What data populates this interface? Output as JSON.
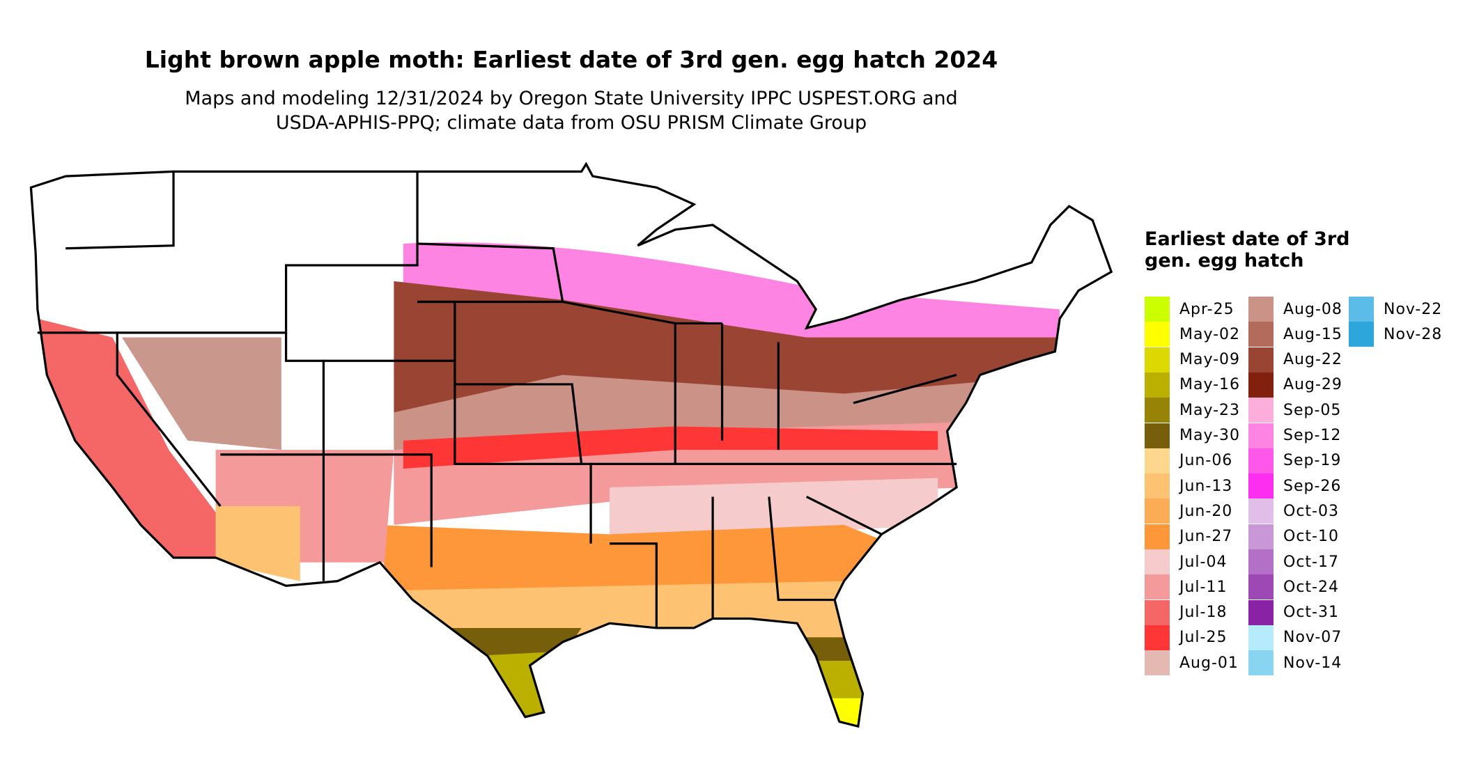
{
  "title": "Light brown apple moth: Earliest date of 3rd gen. egg hatch 2024",
  "subtitle_lines": [
    "Maps and modeling 12/31/2024 by Oregon State University IPPC USPEST.ORG and",
    "USDA-APHIS-PPQ; climate data from OSU PRISM Climate Group"
  ],
  "legend": {
    "title": "Earliest date of 3rd gen. egg hatch",
    "items": [
      {
        "label": "Apr-25",
        "color": "#CCFF00"
      },
      {
        "label": "May-02",
        "color": "#FFFF00"
      },
      {
        "label": "May-09",
        "color": "#DDD800"
      },
      {
        "label": "May-16",
        "color": "#BBAF00"
      },
      {
        "label": "May-23",
        "color": "#978406"
      },
      {
        "label": "May-30",
        "color": "#765E0B"
      },
      {
        "label": "Jun-06",
        "color": "#FED78F"
      },
      {
        "label": "Jun-13",
        "color": "#FEC273"
      },
      {
        "label": "Jun-20",
        "color": "#FDAC56"
      },
      {
        "label": "Jun-27",
        "color": "#FD9739"
      },
      {
        "label": "Jul-04",
        "color": "#F5CBCB"
      },
      {
        "label": "Jul-11",
        "color": "#F59A9A"
      },
      {
        "label": "Jul-18",
        "color": "#F56666"
      },
      {
        "label": "Jul-25",
        "color": "#FE3636"
      },
      {
        "label": "Aug-01",
        "color": "#E4B9B2"
      },
      {
        "label": "Aug-08",
        "color": "#CB9287"
      },
      {
        "label": "Aug-15",
        "color": "#B36B5C"
      },
      {
        "label": "Aug-22",
        "color": "#9A4533"
      },
      {
        "label": "Aug-29",
        "color": "#81200C"
      },
      {
        "label": "Sep-05",
        "color": "#FDAFDB"
      },
      {
        "label": "Sep-12",
        "color": "#FD84E2"
      },
      {
        "label": "Sep-19",
        "color": "#FD58E9"
      },
      {
        "label": "Sep-26",
        "color": "#FD2EF0"
      },
      {
        "label": "Oct-03",
        "color": "#E0BEE7"
      },
      {
        "label": "Oct-10",
        "color": "#CA97D6"
      },
      {
        "label": "Oct-17",
        "color": "#B470C6"
      },
      {
        "label": "Oct-24",
        "color": "#9E48B5"
      },
      {
        "label": "Oct-31",
        "color": "#8922A5"
      },
      {
        "label": "Nov-07",
        "color": "#B6EBFC"
      },
      {
        "label": "Nov-14",
        "color": "#89D4F1"
      },
      {
        "label": "Nov-22",
        "color": "#5BBDE7"
      },
      {
        "label": "Nov-28",
        "color": "#2DA7DB"
      }
    ]
  }
}
